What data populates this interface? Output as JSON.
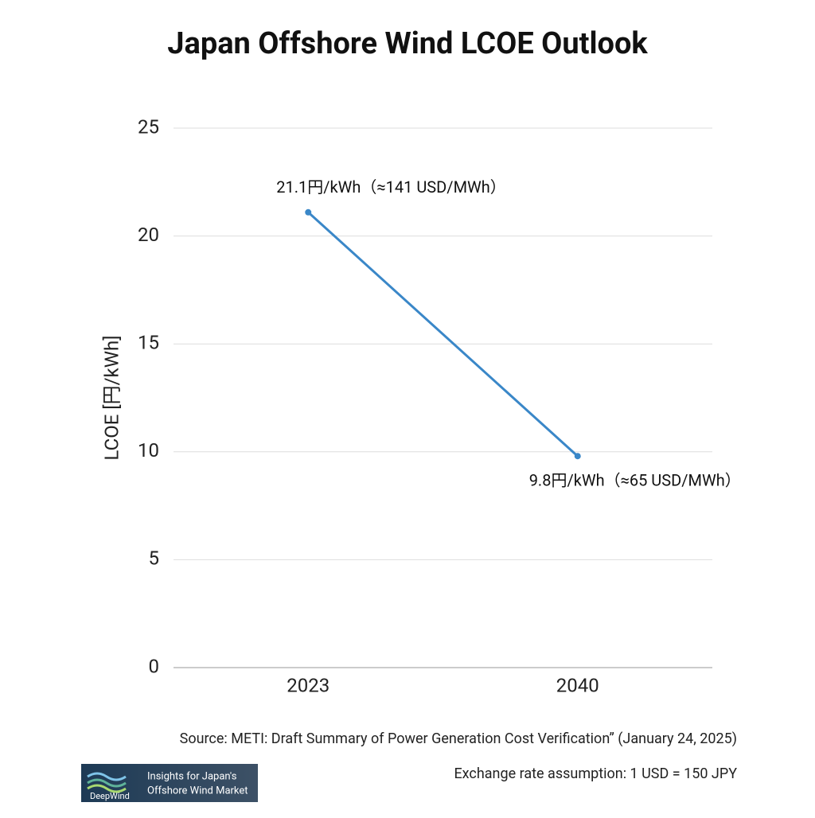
{
  "chart_data": {
    "type": "line",
    "title": "Japan Offshore Wind LCOE Outlook",
    "ylabel": "LCOE [円/kWh]",
    "categories": [
      "2023",
      "2040"
    ],
    "values": [
      21.1,
      9.8
    ],
    "value_labels": [
      "21.1円/kWh（≈141 USD/MWh）",
      "9.8円/kWh（≈65 USD/MWh）"
    ],
    "color": "#3a87c8",
    "ylim": [
      0,
      25
    ],
    "yticks": [
      0,
      5,
      10,
      15,
      20,
      25
    ],
    "grid": true,
    "source": "Source: METI: Draft Summary of Power Generation Cost Verification” (January 24, 2025)",
    "note": "Exchange rate assumption: 1 USD = 150 JPY"
  },
  "logo": {
    "name": "DeepWind",
    "tagline": [
      "Insights for Japan's",
      "Offshore Wind Market"
    ]
  }
}
